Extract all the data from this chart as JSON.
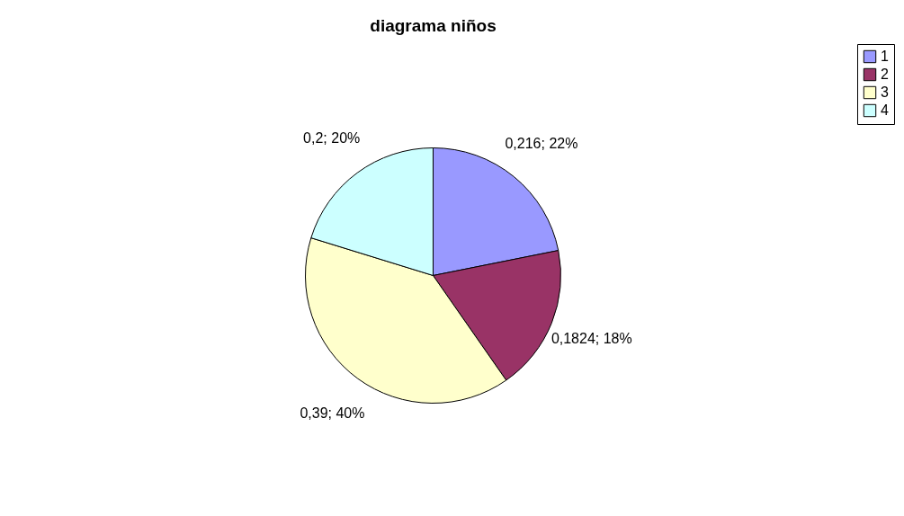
{
  "chart_data": {
    "type": "pie",
    "title": "diagrama niños",
    "categories": [
      "1",
      "2",
      "3",
      "4"
    ],
    "values": [
      0.216,
      0.1824,
      0.39,
      0.2
    ],
    "colors": [
      "#9999ff",
      "#993366",
      "#ffffcc",
      "#ccffff"
    ],
    "value_labels": [
      "0,216; 22%",
      "0,1824; 18%",
      "0,39; 40%",
      "0,2; 20%"
    ],
    "legend": "right"
  }
}
